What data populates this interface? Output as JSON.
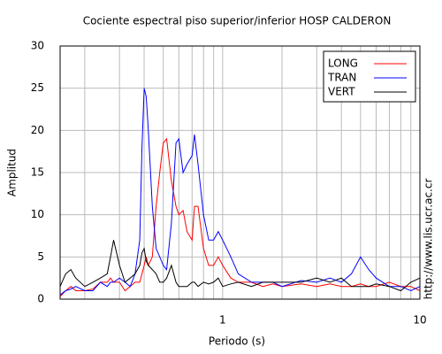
{
  "chart_data": {
    "type": "line",
    "title": "Cociente espectral piso superior/inferior  HOSP CALDERON",
    "xlabel": "Periodo (s)",
    "ylabel": "Amplitud",
    "side_text": "http://www.lis.ucr.ac.cr",
    "xscale": "log",
    "xlim": [
      0.15,
      10
    ],
    "xticks": [
      1,
      10
    ],
    "xminor": [
      0.2,
      0.3,
      0.4,
      0.5,
      0.6,
      0.7,
      0.8,
      0.9,
      2,
      3,
      4,
      5,
      6,
      7,
      8,
      9
    ],
    "ylim": [
      0,
      30
    ],
    "yticks": [
      0,
      5,
      10,
      15,
      20,
      25,
      30
    ],
    "grid": true,
    "legend": "upper right",
    "x": [
      0.15,
      0.16,
      0.17,
      0.18,
      0.2,
      0.22,
      0.24,
      0.26,
      0.27,
      0.28,
      0.3,
      0.32,
      0.34,
      0.36,
      0.38,
      0.39,
      0.4,
      0.41,
      0.42,
      0.44,
      0.46,
      0.48,
      0.5,
      0.52,
      0.55,
      0.58,
      0.6,
      0.63,
      0.66,
      0.7,
      0.72,
      0.75,
      0.8,
      0.85,
      0.9,
      0.95,
      1.0,
      1.1,
      1.2,
      1.4,
      1.6,
      1.8,
      2,
      2.5,
      3,
      3.5,
      4,
      4.5,
      5,
      5.5,
      6,
      7,
      8,
      9,
      10
    ],
    "series": [
      {
        "name": "LONG",
        "color": "#ff0000",
        "values": [
          0.3,
          1,
          1.5,
          1,
          1,
          1.2,
          2,
          2,
          2.5,
          2,
          2,
          1,
          1.5,
          2,
          2,
          3,
          4,
          5,
          4,
          5,
          11,
          15,
          18.5,
          19,
          14,
          11,
          10,
          10.5,
          8,
          7,
          11,
          11,
          6,
          4,
          4,
          5,
          4,
          2.5,
          2,
          2,
          1.5,
          1.8,
          1.5,
          1.8,
          1.5,
          1.8,
          1.5,
          1.5,
          1.8,
          1.5,
          1.5,
          2,
          1.5,
          1.5,
          1
        ]
      },
      {
        "name": "TRAN",
        "color": "#0000ff",
        "values": [
          0.5,
          1,
          1.2,
          1.5,
          1,
          1,
          2,
          1.5,
          2,
          2,
          2.5,
          2,
          1.5,
          3,
          7,
          18,
          25,
          24,
          20,
          11,
          6,
          5,
          4,
          3.5,
          9,
          18.5,
          19,
          15,
          16,
          17,
          19.5,
          16,
          10,
          7,
          7,
          8,
          7,
          5,
          3,
          2,
          2,
          2,
          1.5,
          2.2,
          2,
          2.5,
          2,
          3,
          5,
          3.5,
          2.5,
          1.5,
          1.5,
          1,
          1.5
        ]
      },
      {
        "name": "VERT",
        "color": "#000000",
        "values": [
          1.5,
          3,
          3.5,
          2.5,
          1.5,
          2,
          2.5,
          3,
          5,
          7,
          4,
          2,
          2.5,
          3,
          4,
          5.5,
          6,
          4.5,
          4,
          3.5,
          3,
          2,
          2,
          2.5,
          4,
          2,
          1.5,
          1.5,
          1.5,
          2,
          2,
          1.5,
          2,
          1.8,
          2,
          2.5,
          1.5,
          1.8,
          2,
          1.5,
          2,
          2,
          2,
          2,
          2.5,
          2,
          2.5,
          1.5,
          1.5,
          1.5,
          1.8,
          1.5,
          1,
          2,
          2.5
        ]
      }
    ]
  }
}
